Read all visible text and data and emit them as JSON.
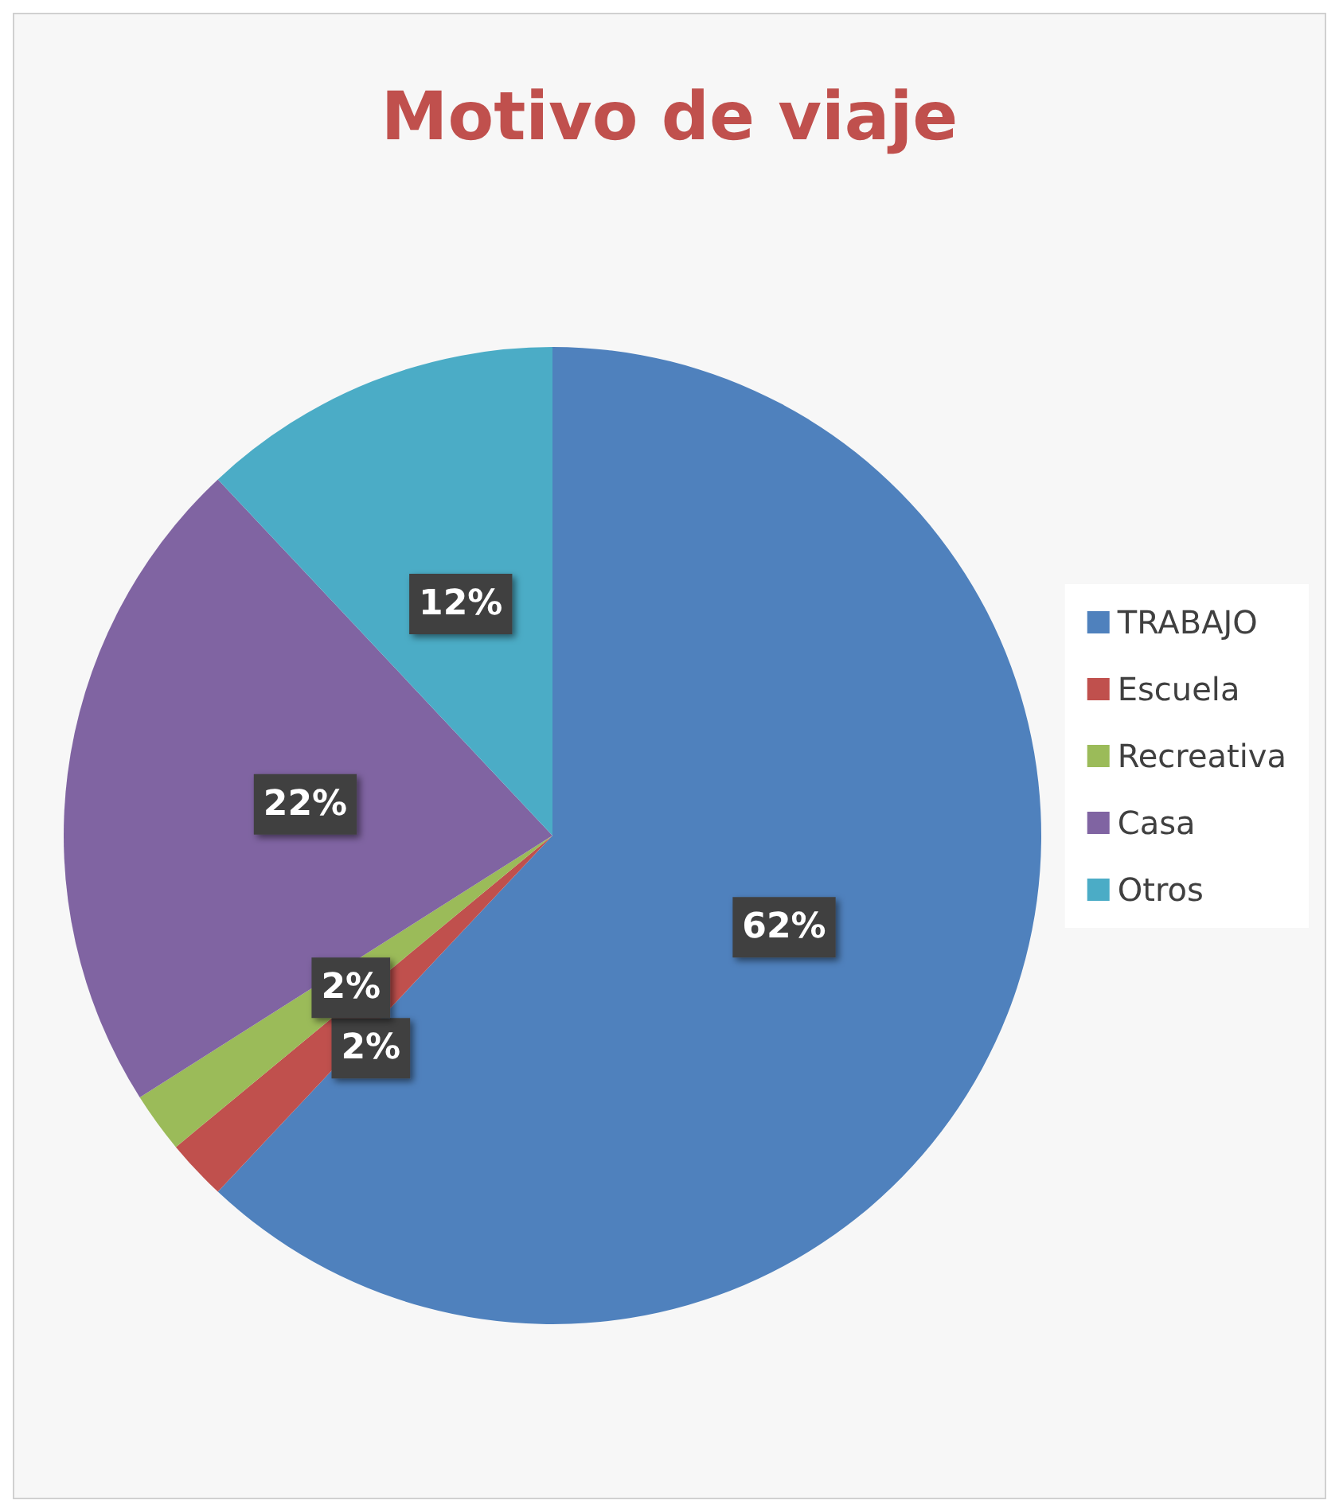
{
  "chart_data": {
    "type": "pie",
    "title": "Motivo de viaje",
    "categories": [
      "TRABAJO",
      "Escuela",
      "Recreativa",
      "Casa",
      "Otros"
    ],
    "values": [
      62,
      2,
      2,
      22,
      12
    ],
    "colors": [
      "#4f81bd",
      "#c0504d",
      "#9bbb59",
      "#8064a2",
      "#4bacc6"
    ],
    "value_labels": [
      "62%",
      "2%",
      "2%",
      "22%",
      "12%"
    ],
    "legend": "right"
  }
}
